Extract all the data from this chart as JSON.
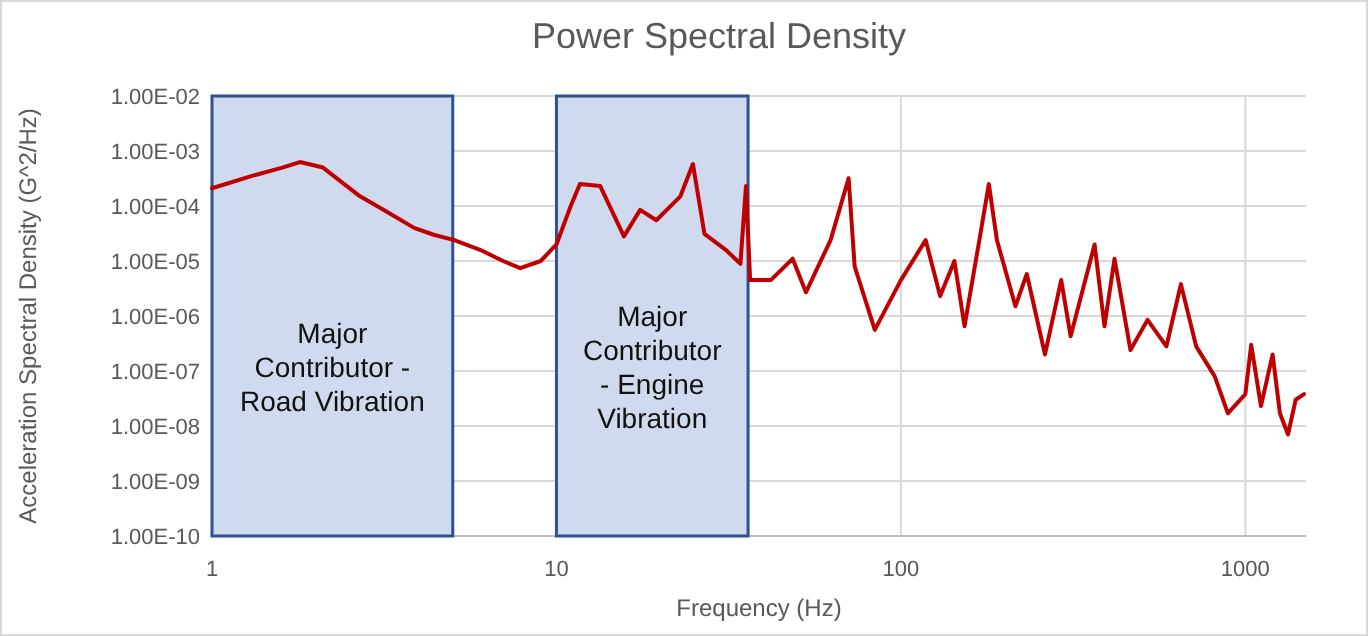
{
  "chart_data": {
    "type": "line",
    "title": "Power Spectral Density",
    "xlabel": "Frequency (Hz)",
    "ylabel": "Acceleration Spectral Density (G^2/Hz)",
    "log": "xy",
    "grid": true,
    "marker": "none",
    "line_style": "solid",
    "xlim": [
      1,
      1500
    ],
    "xticks": [
      1,
      10,
      100,
      1000
    ],
    "ylim": [
      1e-10,
      0.01
    ],
    "yticks": [
      {
        "value": 0.01,
        "label": "1.00E-02"
      },
      {
        "value": 0.001,
        "label": "1.00E-03"
      },
      {
        "value": 0.0001,
        "label": "1.00E-04"
      },
      {
        "value": 1e-05,
        "label": "1.00E-05"
      },
      {
        "value": 1e-06,
        "label": "1.00E-06"
      },
      {
        "value": 1e-07,
        "label": "1.00E-07"
      },
      {
        "value": 1e-08,
        "label": "1.00E-08"
      },
      {
        "value": 1e-09,
        "label": "1.00E-09"
      },
      {
        "value": 1e-10,
        "label": "1.00E-10"
      }
    ],
    "bands": [
      {
        "axis": "x",
        "from": 1,
        "to": 5,
        "label": "Major\nContributor -\nRoad Vibration",
        "color": "#cfdaee"
      },
      {
        "axis": "x",
        "from": 10,
        "to": 36,
        "label": "Major\nContributor\n- Engine\nVibration",
        "color": "#cfdaee"
      }
    ],
    "x": [
      1,
      1.3,
      1.6,
      1.8,
      2.1,
      2.69,
      3.2,
      3.86,
      4.4,
      5.05,
      6,
      7,
      7.85,
      9,
      10,
      11,
      11.7,
      13.4,
      15.7,
      17.5,
      19.5,
      22.9,
      24.9,
      26.9,
      31,
      34.2,
      35.5,
      36.5,
      41.9,
      48.5,
      53,
      62.5,
      70.5,
      73.4,
      84,
      100,
      118,
      130,
      143,
      153,
      170,
      180,
      190,
      215,
      232,
      262,
      292,
      311,
      365,
      390,
      417,
      464,
      520,
      590,
      650,
      720,
      815,
      890,
      1000,
      1040,
      1110,
      1200,
      1260,
      1330,
      1400,
      1480
    ],
    "series": [
      {
        "color": "#c00000",
        "values": [
          0.00021,
          0.00035,
          0.0005,
          0.00063,
          0.0005,
          0.00015,
          8e-05,
          4e-05,
          3e-05,
          2.4e-05,
          1.6e-05,
          1e-05,
          7.4e-06,
          1e-05,
          2e-05,
          0.0001,
          0.00025,
          0.00023,
          2.8e-05,
          8.5e-05,
          5.5e-05,
          0.00015,
          0.00058,
          3.1e-05,
          1.6e-05,
          8.9e-06,
          0.00023,
          4.5e-06,
          4.5e-06,
          1.1e-05,
          2.7e-06,
          2.4e-05,
          0.00032,
          8e-06,
          5.6e-07,
          4.5e-06,
          2.4e-05,
          2.3e-06,
          1e-05,
          6.5e-07,
          3e-05,
          0.00025,
          2.4e-05,
          1.5e-06,
          5.8e-06,
          2e-07,
          4.5e-06,
          4.3e-07,
          2e-05,
          6.5e-07,
          1.1e-05,
          2.4e-07,
          8.5e-07,
          2.8e-07,
          3.8e-06,
          2.8e-07,
          8e-08,
          1.7e-08,
          3.8e-08,
          3e-07,
          2.3e-08,
          2e-07,
          1.7e-08,
          7e-09,
          3e-08,
          3.8e-08
        ]
      }
    ]
  }
}
